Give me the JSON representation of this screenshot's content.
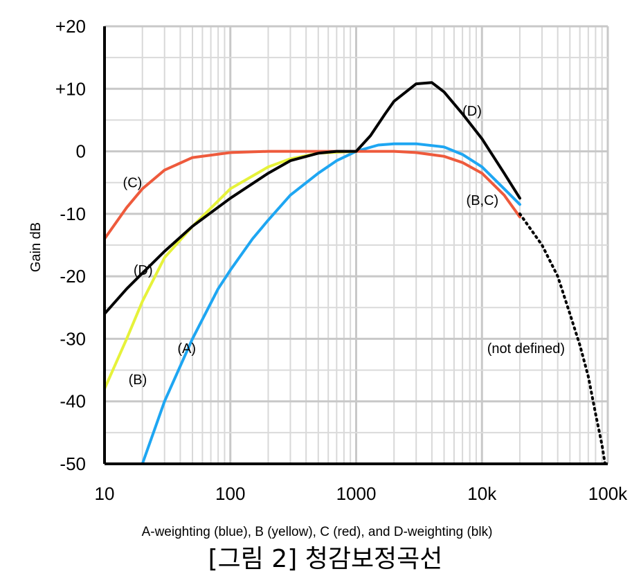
{
  "chart_data": {
    "type": "line",
    "ylabel": "Gain dB",
    "xscale": "log",
    "xlim": [
      10,
      100000
    ],
    "ylim": [
      -50,
      20
    ],
    "grid": true,
    "x_ticks": [
      {
        "value": 10,
        "label": "10"
      },
      {
        "value": 100,
        "label": "100"
      },
      {
        "value": 1000,
        "label": "1000"
      },
      {
        "value": 10000,
        "label": "10k"
      },
      {
        "value": 100000,
        "label": "100k"
      }
    ],
    "y_ticks": [
      {
        "value": 20,
        "label": "+20"
      },
      {
        "value": 10,
        "label": "+10"
      },
      {
        "value": 0,
        "label": "0"
      },
      {
        "value": -10,
        "label": "-10"
      },
      {
        "value": -20,
        "label": "-20"
      },
      {
        "value": -30,
        "label": "-30"
      },
      {
        "value": -40,
        "label": "-40"
      },
      {
        "value": -50,
        "label": "-50"
      }
    ],
    "series": [
      {
        "key": "A",
        "color": "#1ea6f2",
        "style": "solid",
        "x": [
          20,
          30,
          50,
          80,
          100,
          150,
          200,
          300,
          500,
          700,
          1000,
          1500,
          2000,
          3000,
          5000,
          7000,
          10000,
          15000,
          20000
        ],
        "y": [
          -50,
          -40,
          -30,
          -22,
          -19,
          -14,
          -11,
          -7,
          -3.5,
          -1.5,
          0,
          1,
          1.2,
          1.2,
          0.7,
          -0.5,
          -2.5,
          -6,
          -8.5
        ]
      },
      {
        "key": "B",
        "color": "#e6f23a",
        "style": "solid",
        "x": [
          10,
          15,
          20,
          30,
          50,
          100,
          200,
          300,
          500,
          1000
        ],
        "y": [
          -38,
          -30,
          -24,
          -17,
          -12,
          -6,
          -2.5,
          -1.2,
          -0.3,
          0
        ]
      },
      {
        "key": "C",
        "color": "#ee5a3c",
        "style": "solid",
        "x": [
          10,
          15,
          20,
          30,
          50,
          100,
          200,
          500,
          1000,
          2000,
          3000,
          5000,
          7000,
          10000,
          15000,
          20000
        ],
        "y": [
          -14,
          -9,
          -6,
          -3,
          -1,
          -0.2,
          0,
          0,
          0,
          0,
          -0.2,
          -0.8,
          -1.8,
          -3.5,
          -7,
          -10.5
        ]
      },
      {
        "key": "D",
        "color": "#000000",
        "style": "solid",
        "x": [
          10,
          15,
          20,
          30,
          50,
          100,
          200,
          300,
          500,
          700,
          1000,
          1300,
          1700,
          2000,
          3000,
          4000,
          5000,
          7000,
          10000,
          15000,
          20000
        ],
        "y": [
          -26,
          -22,
          -19.5,
          -16,
          -12,
          -7.5,
          -3.5,
          -1.5,
          -0.3,
          0,
          0,
          2.5,
          6,
          8,
          10.8,
          11,
          9.5,
          6,
          2,
          -3.5,
          -7.5
        ]
      },
      {
        "key": "not-defined",
        "color": "#000000",
        "style": "dotted",
        "x": [
          20000,
          30000,
          40000,
          50000,
          60000,
          70000,
          80000,
          90000,
          95000
        ],
        "y": [
          -10,
          -15,
          -20,
          -26,
          -31,
          -36,
          -42,
          -47,
          -50
        ]
      }
    ],
    "annotations": [
      {
        "text": "(D)",
        "x": 7000,
        "y": 6.5
      },
      {
        "text": "(C)",
        "x": 14,
        "y": -5
      },
      {
        "text": "(B,C)",
        "x": 7500,
        "y": -7.8
      },
      {
        "text": "(D)",
        "x": 17,
        "y": -19
      },
      {
        "text": "(A)",
        "x": 38,
        "y": -31.5
      },
      {
        "text": "(not defined)",
        "x": 11000,
        "y": -31.5
      },
      {
        "text": "(B)",
        "x": 15.5,
        "y": -36.5
      }
    ],
    "caption": "A-weighting (blue), B (yellow), C (red), and D-weighting (blk)"
  },
  "figure_title": "[그림 2] 청감보정곡선"
}
